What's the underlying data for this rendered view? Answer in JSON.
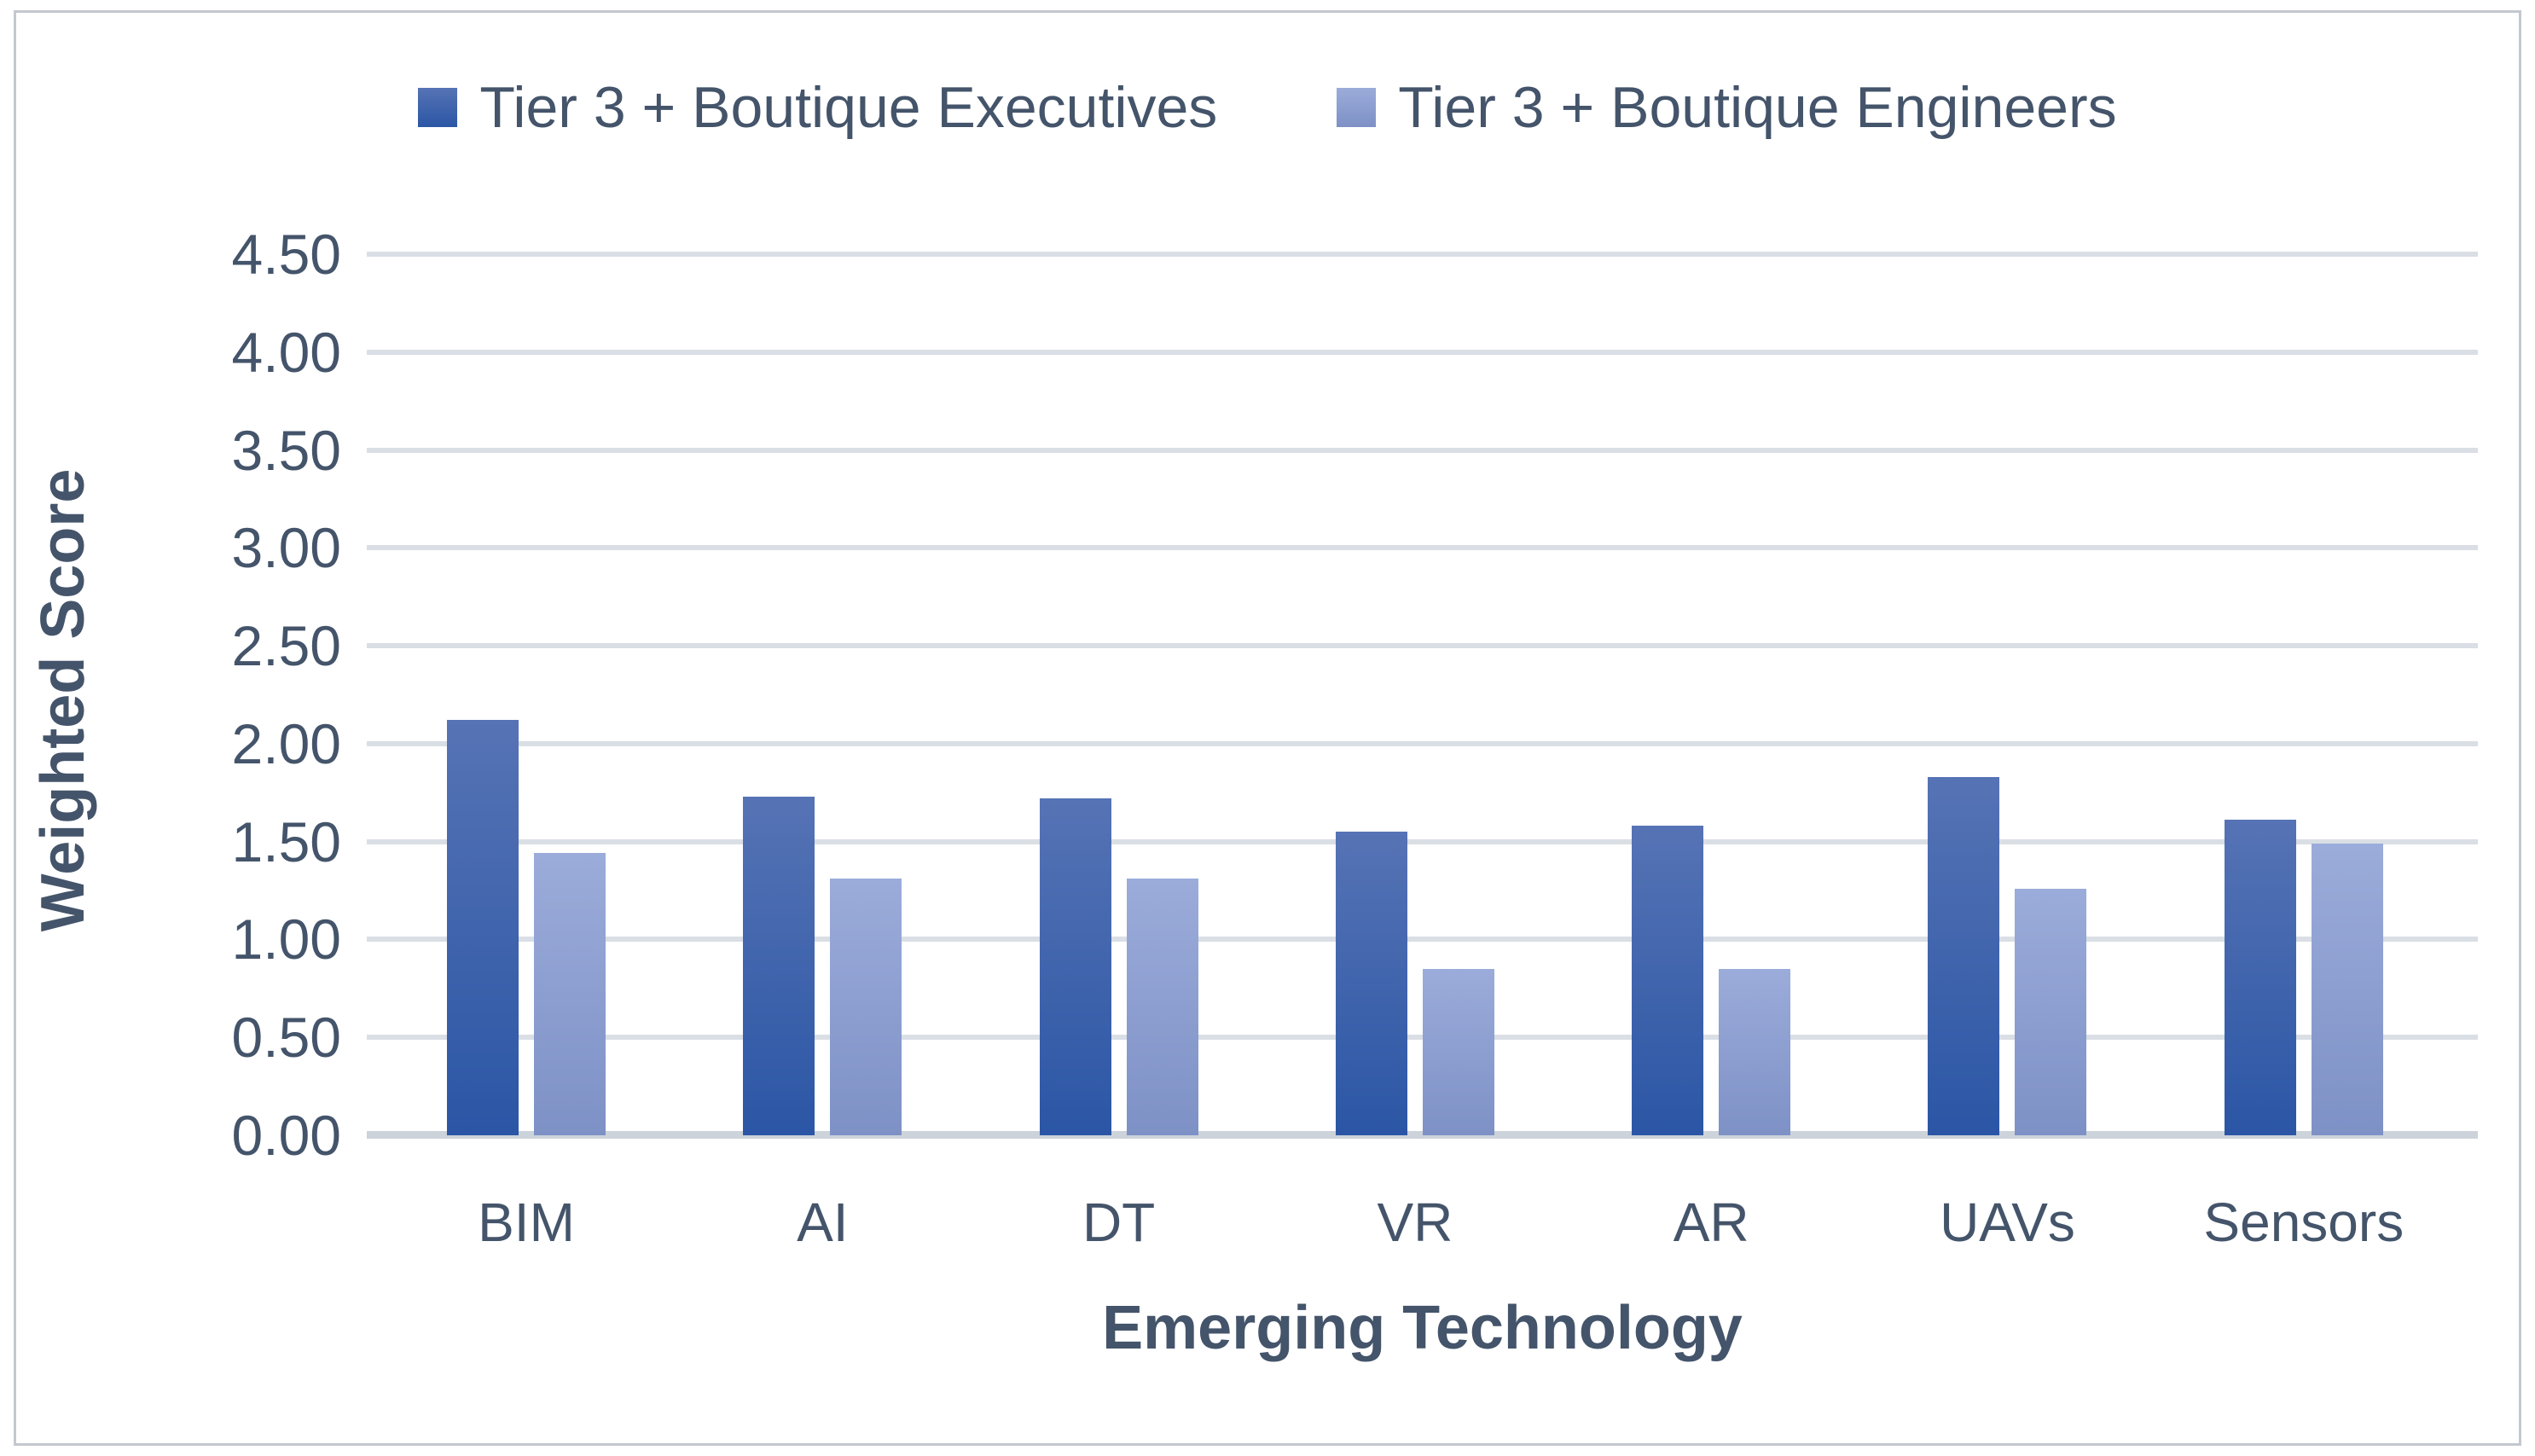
{
  "chart_data": {
    "type": "bar",
    "categories": [
      "BIM",
      "AI",
      "DT",
      "VR",
      "AR",
      "UAVs",
      "Sensors"
    ],
    "series": [
      {
        "name": "Tier 3 + Boutique Executives",
        "values": [
          2.12,
          1.73,
          1.72,
          1.55,
          1.58,
          1.83,
          1.61
        ],
        "color_top": "#5673B5",
        "color_bottom": "#2B56A5"
      },
      {
        "name": "Tier 3 + Boutique Engineers",
        "values": [
          1.44,
          1.31,
          1.31,
          0.85,
          0.85,
          1.26,
          1.49
        ],
        "color_top": "#9BACDA",
        "color_bottom": "#7E91C6"
      }
    ],
    "title": "",
    "xlabel": "Emerging Technology",
    "ylabel": "Weighted Score",
    "ylim": [
      0,
      4.5
    ],
    "ytick_step": 0.5,
    "ytick_labels": [
      "4.50",
      "4.00",
      "3.50",
      "3.00",
      "2.50",
      "2.00",
      "1.50",
      "1.00",
      "0.50",
      "0.00"
    ],
    "grid": true,
    "legend_position": "top",
    "gridline_color": "#DADEE5",
    "axis_line_color": "#CDD3DA",
    "text_color": "#44546A"
  }
}
